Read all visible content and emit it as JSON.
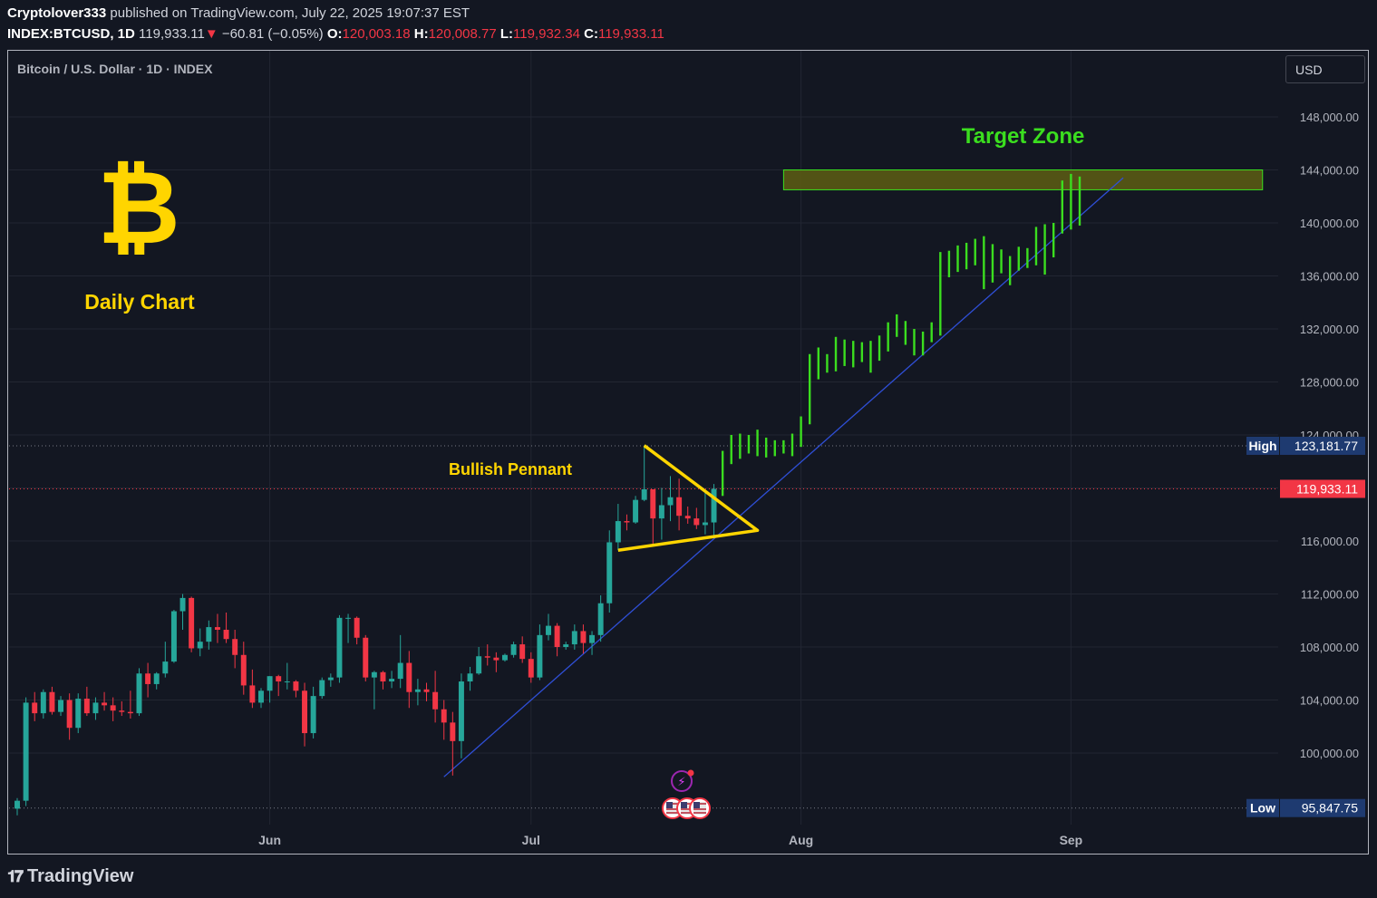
{
  "header": {
    "author": "Cryptolover333",
    "published": "published on TradingView.com, July 22, 2025 19:07:37 EST",
    "symbol": "INDEX:BTCUSD, 1D",
    "last": "119,933.11",
    "change": "−60.81 (−0.05%)",
    "open_label": "O:",
    "open": "120,003.18",
    "high_label": "H:",
    "high": "120,008.77",
    "low_label": "L:",
    "low": "119,932.34",
    "close_label": "C:",
    "close": "119,933.11"
  },
  "pane_title": "Bitcoin / U.S. Dollar · 1D · INDEX",
  "currency_button": "USD",
  "brand_logo_text": "TradingView",
  "colors": {
    "up": "#26a69a",
    "down": "#f23645",
    "projection": "#3bde1f",
    "annotation": "#ffd500",
    "trendline": "#2f4fd6",
    "zone_fill": "#5a5a14",
    "zone_border": "#3bde1f",
    "target_text": "#3bde1f"
  },
  "chart_data": {
    "type": "candlestick",
    "title": "Bitcoin / U.S. Dollar · 1D · INDEX",
    "ylim": [
      95000,
      152000
    ],
    "y_ticks": [
      100000,
      104000,
      108000,
      112000,
      116000,
      120000,
      124000,
      128000,
      132000,
      136000,
      140000,
      144000,
      148000
    ],
    "y_tick_labels": [
      "100,000.00",
      "104,000.00",
      "108,000.00",
      "112,000.00",
      "116,000.00",
      "120,000.00",
      "124,000.00",
      "128,000.00",
      "132,000.00",
      "136,000.00",
      "140,000.00",
      "144,000.00",
      "148,000.00"
    ],
    "x_axis_labels": [
      {
        "date": "2025-06-01",
        "label": "Jun"
      },
      {
        "date": "2025-07-01",
        "label": "Jul"
      },
      {
        "date": "2025-08-01",
        "label": "Aug"
      },
      {
        "date": "2025-09-01",
        "label": "Sep"
      }
    ],
    "x_range": [
      "2025-05-03",
      "2025-09-30"
    ],
    "candles": [
      {
        "date": "2025-05-03",
        "o": 95800,
        "h": 96600,
        "l": 95300,
        "c": 96400
      },
      {
        "date": "2025-05-04",
        "o": 96400,
        "h": 104200,
        "l": 96000,
        "c": 103800
      },
      {
        "date": "2025-05-05",
        "o": 103800,
        "h": 104600,
        "l": 102400,
        "c": 103000
      },
      {
        "date": "2025-05-06",
        "o": 103000,
        "h": 104800,
        "l": 102600,
        "c": 104600
      },
      {
        "date": "2025-05-07",
        "o": 104600,
        "h": 105000,
        "l": 102900,
        "c": 103100
      },
      {
        "date": "2025-05-08",
        "o": 103100,
        "h": 104300,
        "l": 102800,
        "c": 104000
      },
      {
        "date": "2025-05-09",
        "o": 104000,
        "h": 104500,
        "l": 101000,
        "c": 101900
      },
      {
        "date": "2025-05-10",
        "o": 101900,
        "h": 104500,
        "l": 101500,
        "c": 104100
      },
      {
        "date": "2025-05-11",
        "o": 104100,
        "h": 105000,
        "l": 102800,
        "c": 103000
      },
      {
        "date": "2025-05-12",
        "o": 103000,
        "h": 104200,
        "l": 102500,
        "c": 103800
      },
      {
        "date": "2025-05-13",
        "o": 103800,
        "h": 104600,
        "l": 103200,
        "c": 103600
      },
      {
        "date": "2025-05-14",
        "o": 103600,
        "h": 104200,
        "l": 102400,
        "c": 103200
      },
      {
        "date": "2025-05-15",
        "o": 103200,
        "h": 103900,
        "l": 102800,
        "c": 103100
      },
      {
        "date": "2025-05-16",
        "o": 103100,
        "h": 104700,
        "l": 102600,
        "c": 103000
      },
      {
        "date": "2025-05-17",
        "o": 103000,
        "h": 106400,
        "l": 102800,
        "c": 106000
      },
      {
        "date": "2025-05-18",
        "o": 106000,
        "h": 106800,
        "l": 104200,
        "c": 105200
      },
      {
        "date": "2025-05-19",
        "o": 105200,
        "h": 106100,
        "l": 104800,
        "c": 106000
      },
      {
        "date": "2025-05-20",
        "o": 106000,
        "h": 108400,
        "l": 105700,
        "c": 106900
      },
      {
        "date": "2025-05-21",
        "o": 106900,
        "h": 110800,
        "l": 106800,
        "c": 110700
      },
      {
        "date": "2025-05-22",
        "o": 110700,
        "h": 112000,
        "l": 109300,
        "c": 111700
      },
      {
        "date": "2025-05-23",
        "o": 111700,
        "h": 111800,
        "l": 107600,
        "c": 107900
      },
      {
        "date": "2025-05-24",
        "o": 107900,
        "h": 109400,
        "l": 107300,
        "c": 108400
      },
      {
        "date": "2025-05-25",
        "o": 108400,
        "h": 110000,
        "l": 107800,
        "c": 109500
      },
      {
        "date": "2025-05-26",
        "o": 109500,
        "h": 110500,
        "l": 108300,
        "c": 109300
      },
      {
        "date": "2025-05-27",
        "o": 109300,
        "h": 110600,
        "l": 108300,
        "c": 108600
      },
      {
        "date": "2025-05-28",
        "o": 108600,
        "h": 109300,
        "l": 106400,
        "c": 107400
      },
      {
        "date": "2025-05-29",
        "o": 107400,
        "h": 108400,
        "l": 104400,
        "c": 105100
      },
      {
        "date": "2025-05-30",
        "o": 105100,
        "h": 106300,
        "l": 103400,
        "c": 103800
      },
      {
        "date": "2025-05-31",
        "o": 103800,
        "h": 104900,
        "l": 103400,
        "c": 104700
      },
      {
        "date": "2025-06-01",
        "o": 104700,
        "h": 105800,
        "l": 103800,
        "c": 105800
      },
      {
        "date": "2025-06-02",
        "o": 105800,
        "h": 105900,
        "l": 104300,
        "c": 105400
      },
      {
        "date": "2025-06-03",
        "o": 105400,
        "h": 106800,
        "l": 104800,
        "c": 105400
      },
      {
        "date": "2025-06-04",
        "o": 105400,
        "h": 105500,
        "l": 104200,
        "c": 104700
      },
      {
        "date": "2025-06-05",
        "o": 104700,
        "h": 105300,
        "l": 100500,
        "c": 101500
      },
      {
        "date": "2025-06-06",
        "o": 101500,
        "h": 105000,
        "l": 101100,
        "c": 104300
      },
      {
        "date": "2025-06-07",
        "o": 104300,
        "h": 105700,
        "l": 104100,
        "c": 105500
      },
      {
        "date": "2025-06-08",
        "o": 105500,
        "h": 106000,
        "l": 105000,
        "c": 105700
      },
      {
        "date": "2025-06-09",
        "o": 105700,
        "h": 110400,
        "l": 105300,
        "c": 110200
      },
      {
        "date": "2025-06-10",
        "o": 110200,
        "h": 110500,
        "l": 108300,
        "c": 110200
      },
      {
        "date": "2025-06-11",
        "o": 110200,
        "h": 110300,
        "l": 108200,
        "c": 108700
      },
      {
        "date": "2025-06-12",
        "o": 108700,
        "h": 108900,
        "l": 105400,
        "c": 105700
      },
      {
        "date": "2025-06-13",
        "o": 105700,
        "h": 106200,
        "l": 103300,
        "c": 106100
      },
      {
        "date": "2025-06-14",
        "o": 106100,
        "h": 106200,
        "l": 104800,
        "c": 105400
      },
      {
        "date": "2025-06-15",
        "o": 105400,
        "h": 106200,
        "l": 104900,
        "c": 105600
      },
      {
        "date": "2025-06-16",
        "o": 105600,
        "h": 108900,
        "l": 104900,
        "c": 106800
      },
      {
        "date": "2025-06-17",
        "o": 106800,
        "h": 107700,
        "l": 103400,
        "c": 104600
      },
      {
        "date": "2025-06-18",
        "o": 104600,
        "h": 105600,
        "l": 103600,
        "c": 104800
      },
      {
        "date": "2025-06-19",
        "o": 104800,
        "h": 105300,
        "l": 103900,
        "c": 104600
      },
      {
        "date": "2025-06-20",
        "o": 104600,
        "h": 106200,
        "l": 102300,
        "c": 103300
      },
      {
        "date": "2025-06-21",
        "o": 103300,
        "h": 104000,
        "l": 101000,
        "c": 102300
      },
      {
        "date": "2025-06-22",
        "o": 102300,
        "h": 103100,
        "l": 98300,
        "c": 100900
      },
      {
        "date": "2025-06-23",
        "o": 100900,
        "h": 106000,
        "l": 99600,
        "c": 105400
      },
      {
        "date": "2025-06-24",
        "o": 105400,
        "h": 106500,
        "l": 104700,
        "c": 106000
      },
      {
        "date": "2025-06-25",
        "o": 106000,
        "h": 108000,
        "l": 105900,
        "c": 107300
      },
      {
        "date": "2025-06-26",
        "o": 107300,
        "h": 108200,
        "l": 106600,
        "c": 107200
      },
      {
        "date": "2025-06-27",
        "o": 107200,
        "h": 107600,
        "l": 106100,
        "c": 107000
      },
      {
        "date": "2025-06-28",
        "o": 107000,
        "h": 107500,
        "l": 106900,
        "c": 107400
      },
      {
        "date": "2025-06-29",
        "o": 107400,
        "h": 108400,
        "l": 107200,
        "c": 108200
      },
      {
        "date": "2025-06-30",
        "o": 108200,
        "h": 108800,
        "l": 106800,
        "c": 107100
      },
      {
        "date": "2025-07-01",
        "o": 107100,
        "h": 107600,
        "l": 105300,
        "c": 105700
      },
      {
        "date": "2025-07-02",
        "o": 105700,
        "h": 109700,
        "l": 105500,
        "c": 108900
      },
      {
        "date": "2025-07-03",
        "o": 108900,
        "h": 110500,
        "l": 108500,
        "c": 109600
      },
      {
        "date": "2025-07-04",
        "o": 109600,
        "h": 109800,
        "l": 107300,
        "c": 108000
      },
      {
        "date": "2025-07-05",
        "o": 108000,
        "h": 108400,
        "l": 107800,
        "c": 108200
      },
      {
        "date": "2025-07-06",
        "o": 108200,
        "h": 109700,
        "l": 107800,
        "c": 109200
      },
      {
        "date": "2025-07-07",
        "o": 109200,
        "h": 109700,
        "l": 107500,
        "c": 108300
      },
      {
        "date": "2025-07-08",
        "o": 108300,
        "h": 109200,
        "l": 107400,
        "c": 108900
      },
      {
        "date": "2025-07-09",
        "o": 108900,
        "h": 111900,
        "l": 108400,
        "c": 111300
      },
      {
        "date": "2025-07-10",
        "o": 111300,
        "h": 116800,
        "l": 110600,
        "c": 115900
      },
      {
        "date": "2025-07-11",
        "o": 115900,
        "h": 118800,
        "l": 115300,
        "c": 117500
      },
      {
        "date": "2025-07-12",
        "o": 117500,
        "h": 118000,
        "l": 116800,
        "c": 117400
      },
      {
        "date": "2025-07-13",
        "o": 117400,
        "h": 119400,
        "l": 117300,
        "c": 119100
      },
      {
        "date": "2025-07-14",
        "o": 119100,
        "h": 123200,
        "l": 119000,
        "c": 119900
      },
      {
        "date": "2025-07-15",
        "o": 119900,
        "h": 119900,
        "l": 115700,
        "c": 117700
      },
      {
        "date": "2025-07-16",
        "o": 117700,
        "h": 120000,
        "l": 116100,
        "c": 118700
      },
      {
        "date": "2025-07-17",
        "o": 118700,
        "h": 120900,
        "l": 117500,
        "c": 119300
      },
      {
        "date": "2025-07-18",
        "o": 119300,
        "h": 120700,
        "l": 116800,
        "c": 117900
      },
      {
        "date": "2025-07-19",
        "o": 117900,
        "h": 118600,
        "l": 117300,
        "c": 117700
      },
      {
        "date": "2025-07-20",
        "o": 117700,
        "h": 118500,
        "l": 116900,
        "c": 117200
      },
      {
        "date": "2025-07-21",
        "o": 117200,
        "h": 119700,
        "l": 116500,
        "c": 117400
      },
      {
        "date": "2025-07-22",
        "o": 117400,
        "h": 120300,
        "l": 116300,
        "c": 119933
      }
    ],
    "projection": [
      {
        "date": "2025-07-23",
        "o": 119900,
        "h": 122800,
        "l": 119400,
        "c": 122400
      },
      {
        "date": "2025-07-24",
        "o": 122400,
        "h": 124000,
        "l": 121800,
        "c": 123200
      },
      {
        "date": "2025-07-25",
        "o": 123200,
        "h": 124100,
        "l": 122200,
        "c": 123400
      },
      {
        "date": "2025-07-26",
        "o": 123400,
        "h": 124000,
        "l": 122600,
        "c": 123100
      },
      {
        "date": "2025-07-27",
        "o": 123100,
        "h": 124400,
        "l": 122400,
        "c": 123600
      },
      {
        "date": "2025-07-28",
        "o": 123600,
        "h": 123800,
        "l": 122300,
        "c": 123000
      },
      {
        "date": "2025-07-29",
        "o": 123000,
        "h": 123600,
        "l": 122400,
        "c": 123200
      },
      {
        "date": "2025-07-30",
        "o": 123200,
        "h": 123600,
        "l": 122600,
        "c": 122900
      },
      {
        "date": "2025-07-31",
        "o": 122900,
        "h": 124100,
        "l": 122400,
        "c": 123900
      },
      {
        "date": "2025-08-01",
        "o": 123900,
        "h": 125400,
        "l": 123100,
        "c": 125200
      },
      {
        "date": "2025-08-02",
        "o": 125200,
        "h": 130100,
        "l": 124800,
        "c": 129600
      },
      {
        "date": "2025-08-03",
        "o": 129600,
        "h": 130600,
        "l": 128200,
        "c": 129400
      },
      {
        "date": "2025-08-04",
        "o": 129400,
        "h": 130100,
        "l": 128700,
        "c": 129800
      },
      {
        "date": "2025-08-05",
        "o": 129800,
        "h": 131400,
        "l": 128800,
        "c": 130900
      },
      {
        "date": "2025-08-06",
        "o": 130900,
        "h": 131200,
        "l": 129200,
        "c": 130200
      },
      {
        "date": "2025-08-07",
        "o": 130200,
        "h": 131100,
        "l": 129100,
        "c": 130700
      },
      {
        "date": "2025-08-08",
        "o": 130700,
        "h": 131000,
        "l": 129500,
        "c": 130200
      },
      {
        "date": "2025-08-09",
        "o": 130200,
        "h": 131100,
        "l": 128700,
        "c": 130800
      },
      {
        "date": "2025-08-10",
        "o": 130800,
        "h": 131500,
        "l": 129600,
        "c": 131200
      },
      {
        "date": "2025-08-11",
        "o": 131200,
        "h": 132500,
        "l": 130300,
        "c": 132300
      },
      {
        "date": "2025-08-12",
        "o": 132300,
        "h": 133100,
        "l": 131400,
        "c": 132000
      },
      {
        "date": "2025-08-13",
        "o": 132000,
        "h": 132600,
        "l": 130800,
        "c": 131500
      },
      {
        "date": "2025-08-14",
        "o": 131500,
        "h": 132000,
        "l": 130000,
        "c": 130400
      },
      {
        "date": "2025-08-15",
        "o": 130400,
        "h": 131800,
        "l": 130000,
        "c": 131400
      },
      {
        "date": "2025-08-16",
        "o": 131400,
        "h": 132500,
        "l": 131000,
        "c": 132100
      },
      {
        "date": "2025-08-17",
        "o": 132100,
        "h": 137800,
        "l": 131500,
        "c": 137200
      },
      {
        "date": "2025-08-18",
        "o": 137200,
        "h": 137900,
        "l": 135900,
        "c": 136700
      },
      {
        "date": "2025-08-19",
        "o": 136700,
        "h": 138300,
        "l": 136300,
        "c": 137900
      },
      {
        "date": "2025-08-20",
        "o": 137900,
        "h": 138500,
        "l": 136500,
        "c": 137400
      },
      {
        "date": "2025-08-21",
        "o": 137400,
        "h": 138800,
        "l": 136800,
        "c": 138200
      },
      {
        "date": "2025-08-22",
        "o": 138200,
        "h": 139000,
        "l": 135000,
        "c": 136300
      },
      {
        "date": "2025-08-23",
        "o": 136300,
        "h": 138400,
        "l": 135500,
        "c": 137700
      },
      {
        "date": "2025-08-24",
        "o": 137700,
        "h": 138000,
        "l": 136200,
        "c": 136700
      },
      {
        "date": "2025-08-25",
        "o": 136700,
        "h": 137500,
        "l": 135300,
        "c": 136900
      },
      {
        "date": "2025-08-26",
        "o": 136900,
        "h": 138200,
        "l": 136400,
        "c": 137800
      },
      {
        "date": "2025-08-27",
        "o": 137800,
        "h": 138100,
        "l": 136600,
        "c": 137200
      },
      {
        "date": "2025-08-28",
        "o": 137200,
        "h": 139700,
        "l": 136800,
        "c": 139300
      },
      {
        "date": "2025-08-29",
        "o": 139300,
        "h": 139900,
        "l": 136100,
        "c": 138000
      },
      {
        "date": "2025-08-30",
        "o": 138000,
        "h": 140000,
        "l": 137400,
        "c": 139700
      },
      {
        "date": "2025-08-31",
        "o": 139700,
        "h": 143200,
        "l": 139200,
        "c": 141900
      },
      {
        "date": "2025-09-01",
        "o": 141900,
        "h": 143700,
        "l": 139500,
        "c": 142700
      },
      {
        "date": "2025-09-02",
        "o": 142700,
        "h": 143500,
        "l": 139800,
        "c": 140400
      }
    ],
    "annotations": {
      "target_zone": {
        "label": "Target Zone",
        "y_low": 142500,
        "y_high": 144000,
        "date_start": "2025-07-30",
        "date_end": "2025-09-23"
      },
      "pennant": {
        "label": "Bullish Pennant",
        "points": [
          {
            "date": "2025-07-14",
            "y": 123200
          },
          {
            "date": "2025-07-27",
            "y": 116800
          },
          {
            "date": "2025-07-11",
            "y": 115300
          }
        ]
      },
      "trendline": {
        "start": {
          "date": "2025-06-21",
          "y": 98200
        },
        "end": {
          "date": "2025-09-07",
          "y": 143400
        }
      },
      "high_line": {
        "label": "High",
        "value": 123181.77,
        "value_label": "123,181.77"
      },
      "low_line": {
        "label": "Low",
        "value": 95847.75,
        "value_label": "95,847.75"
      },
      "last_price": {
        "value": 119933.11,
        "value_label": "119,933.11"
      },
      "bitcoin_logo": "₿",
      "daily_label": "Daily Chart"
    }
  }
}
